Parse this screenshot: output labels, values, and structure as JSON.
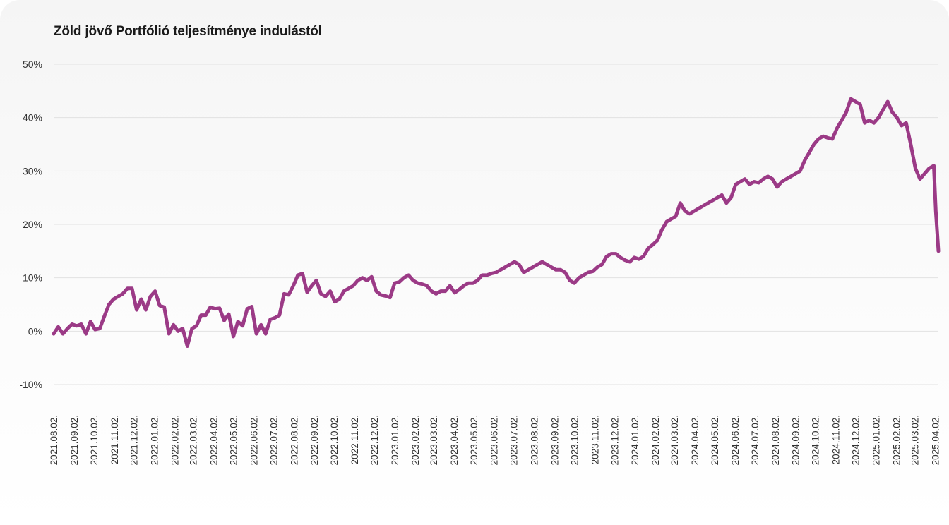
{
  "chart_data": {
    "type": "line",
    "title": "Zöld jövő Portfólió teljesítménye indulástól",
    "y_ticks": [
      "50%",
      "40%",
      "30%",
      "20%",
      "10%",
      "0%",
      "-10%"
    ],
    "y_tick_values": [
      50,
      40,
      30,
      20,
      10,
      0,
      -10
    ],
    "ylim": [
      -10,
      50
    ],
    "x_tick_labels": [
      "2021.08.02.",
      "2021.09.02.",
      "2021.10.02.",
      "2021.11.02.",
      "2021.12.02.",
      "2022.01.02.",
      "2022.02.02.",
      "2022.03.02.",
      "2022.04.02.",
      "2022.05.02.",
      "2022.06.02.",
      "2022.07.02.",
      "2022.08.02.",
      "2022.09.02.",
      "2022.10.02.",
      "2022.11.02.",
      "2022.12.02.",
      "2023.01.02.",
      "2023.02.02.",
      "2023.03.02.",
      "2023.04.02.",
      "2023.05.02.",
      "2023.06.02.",
      "2023.07.02.",
      "2023.08.02.",
      "2023.09.02.",
      "2023.10.02.",
      "2023.11.02.",
      "2023.12.02.",
      "2024.01.02.",
      "2024.02.02.",
      "2024.03.02.",
      "2024.04.02.",
      "2024.05.02.",
      "2024.06.02.",
      "2024.07.02.",
      "2024.08.02.",
      "2024.09.02.",
      "2024.10.02.",
      "2024.11.02.",
      "2024.12.02.",
      "2025.01.02.",
      "2025.02.02.",
      "2025.03.02.",
      "2025.04.02."
    ],
    "grid": true,
    "line_color": "#9b3a86",
    "series": [
      {
        "x": [
          "2021-08-02",
          "2021-08-09",
          "2021-08-16",
          "2021-08-23",
          "2021-08-30",
          "2021-09-06",
          "2021-09-13",
          "2021-09-20",
          "2021-09-27",
          "2021-10-04",
          "2021-10-11",
          "2021-10-18",
          "2021-10-25",
          "2021-11-01",
          "2021-11-08",
          "2021-11-15",
          "2021-11-22",
          "2021-11-29",
          "2021-12-06",
          "2021-12-13",
          "2021-12-20",
          "2021-12-27",
          "2022-01-03",
          "2022-01-10",
          "2022-01-17",
          "2022-01-24",
          "2022-01-31",
          "2022-02-07",
          "2022-02-14",
          "2022-02-21",
          "2022-02-28",
          "2022-03-07",
          "2022-03-14",
          "2022-03-21",
          "2022-03-28",
          "2022-04-04",
          "2022-04-11",
          "2022-04-18",
          "2022-04-25",
          "2022-05-02",
          "2022-05-09",
          "2022-05-16",
          "2022-05-23",
          "2022-05-30",
          "2022-06-06",
          "2022-06-13",
          "2022-06-20",
          "2022-06-27",
          "2022-07-04",
          "2022-07-11",
          "2022-07-18",
          "2022-07-25",
          "2022-08-01",
          "2022-08-08",
          "2022-08-15",
          "2022-08-22",
          "2022-08-29",
          "2022-09-05",
          "2022-09-12",
          "2022-09-19",
          "2022-09-26",
          "2022-10-03",
          "2022-10-10",
          "2022-10-17",
          "2022-10-24",
          "2022-10-31",
          "2022-11-07",
          "2022-11-14",
          "2022-11-21",
          "2022-11-28",
          "2022-12-05",
          "2022-12-12",
          "2022-12-19",
          "2022-12-26",
          "2023-01-02",
          "2023-01-09",
          "2023-01-16",
          "2023-01-23",
          "2023-01-30",
          "2023-02-06",
          "2023-02-13",
          "2023-02-20",
          "2023-02-27",
          "2023-03-06",
          "2023-03-13",
          "2023-03-20",
          "2023-03-27",
          "2023-04-03",
          "2023-04-10",
          "2023-04-17",
          "2023-04-24",
          "2023-05-01",
          "2023-05-08",
          "2023-05-15",
          "2023-05-22",
          "2023-05-29",
          "2023-06-05",
          "2023-06-12",
          "2023-06-19",
          "2023-06-26",
          "2023-07-03",
          "2023-07-10",
          "2023-07-17",
          "2023-07-24",
          "2023-07-31",
          "2023-08-07",
          "2023-08-14",
          "2023-08-21",
          "2023-08-28",
          "2023-09-04",
          "2023-09-11",
          "2023-09-18",
          "2023-09-25",
          "2023-10-02",
          "2023-10-09",
          "2023-10-16",
          "2023-10-23",
          "2023-10-30",
          "2023-11-06",
          "2023-11-13",
          "2023-11-20",
          "2023-11-27",
          "2023-12-04",
          "2023-12-11",
          "2023-12-18",
          "2023-12-25",
          "2024-01-01",
          "2024-01-08",
          "2024-01-15",
          "2024-01-22",
          "2024-01-29",
          "2024-02-05",
          "2024-02-12",
          "2024-02-19",
          "2024-02-26",
          "2024-03-04",
          "2024-03-11",
          "2024-03-18",
          "2024-03-25",
          "2024-04-01",
          "2024-04-08",
          "2024-04-15",
          "2024-04-22",
          "2024-04-29",
          "2024-05-06",
          "2024-05-13",
          "2024-05-20",
          "2024-05-27",
          "2024-06-03",
          "2024-06-10",
          "2024-06-17",
          "2024-06-24",
          "2024-07-01",
          "2024-07-08",
          "2024-07-15",
          "2024-07-22",
          "2024-07-29",
          "2024-08-05",
          "2024-08-12",
          "2024-08-19",
          "2024-08-26",
          "2024-09-02",
          "2024-09-09",
          "2024-09-16",
          "2024-09-23",
          "2024-09-30",
          "2024-10-07",
          "2024-10-14",
          "2024-10-21",
          "2024-10-28",
          "2024-11-04",
          "2024-11-11",
          "2024-11-18",
          "2024-11-25",
          "2024-12-02",
          "2024-12-09",
          "2024-12-16",
          "2024-12-23",
          "2024-12-30",
          "2025-01-06",
          "2025-01-13",
          "2025-01-20",
          "2025-01-27",
          "2025-02-03",
          "2025-02-10",
          "2025-02-17",
          "2025-02-24",
          "2025-03-03",
          "2025-03-10",
          "2025-03-17",
          "2025-03-24",
          "2025-03-31",
          "2025-04-03",
          "2025-04-07"
        ],
        "y": [
          -0.5,
          0.8,
          -0.5,
          0.5,
          1.3,
          1.0,
          1.3,
          -0.5,
          1.8,
          0.3,
          0.5,
          2.8,
          5.0,
          6.0,
          6.5,
          7.0,
          8.0,
          8.0,
          4.0,
          6.0,
          4.0,
          6.5,
          7.5,
          4.8,
          4.5,
          -0.5,
          1.2,
          0.0,
          0.5,
          -2.8,
          0.5,
          1.0,
          3.0,
          3.0,
          4.5,
          4.2,
          4.3,
          2.0,
          3.2,
          -1.0,
          1.8,
          1.0,
          4.2,
          4.6,
          -0.5,
          1.2,
          -0.5,
          2.2,
          2.5,
          3.0,
          7.0,
          6.8,
          8.5,
          10.5,
          10.8,
          7.3,
          8.5,
          9.5,
          7.0,
          6.5,
          7.5,
          5.5,
          6.0,
          7.5,
          8.0,
          8.5,
          9.5,
          10.0,
          9.5,
          10.2,
          7.5,
          6.8,
          6.6,
          6.3,
          9.0,
          9.2,
          10.0,
          10.5,
          9.5,
          9.0,
          8.8,
          8.5,
          7.5,
          7.0,
          7.5,
          7.5,
          8.5,
          7.2,
          7.8,
          8.5,
          9.0,
          9.0,
          9.5,
          10.5,
          10.5,
          10.8,
          11.0,
          11.5,
          12.0,
          12.5,
          13.0,
          12.5,
          11.0,
          11.5,
          12.0,
          12.5,
          13.0,
          12.5,
          12.0,
          11.5,
          11.5,
          11.0,
          9.5,
          9.0,
          10.0,
          10.5,
          11.0,
          11.2,
          12.0,
          12.5,
          14.0,
          14.5,
          14.5,
          13.8,
          13.3,
          13.0,
          13.8,
          13.5,
          14.0,
          15.5,
          16.2,
          17.0,
          19.0,
          20.5,
          21.0,
          21.5,
          24.0,
          22.5,
          22.0,
          22.5,
          23.0,
          23.5,
          24.0,
          24.5,
          25.0,
          25.5,
          24.0,
          25.0,
          27.5,
          28.0,
          28.5,
          27.5,
          28.0,
          27.8,
          28.5,
          29.0,
          28.5,
          27.0,
          28.0,
          28.5,
          29.0,
          29.5,
          30.0,
          32.0,
          33.5,
          35.0,
          36.0,
          36.5,
          36.2,
          36.0,
          38.0,
          39.5,
          41.0,
          43.5,
          43.0,
          42.5,
          39.0,
          39.5,
          39.0,
          40.0,
          41.5,
          43.0,
          41.0,
          40.0,
          38.5,
          39.0,
          35.0,
          30.5,
          28.5,
          29.5,
          30.5,
          31.0,
          22.5,
          15.0
        ]
      }
    ]
  }
}
